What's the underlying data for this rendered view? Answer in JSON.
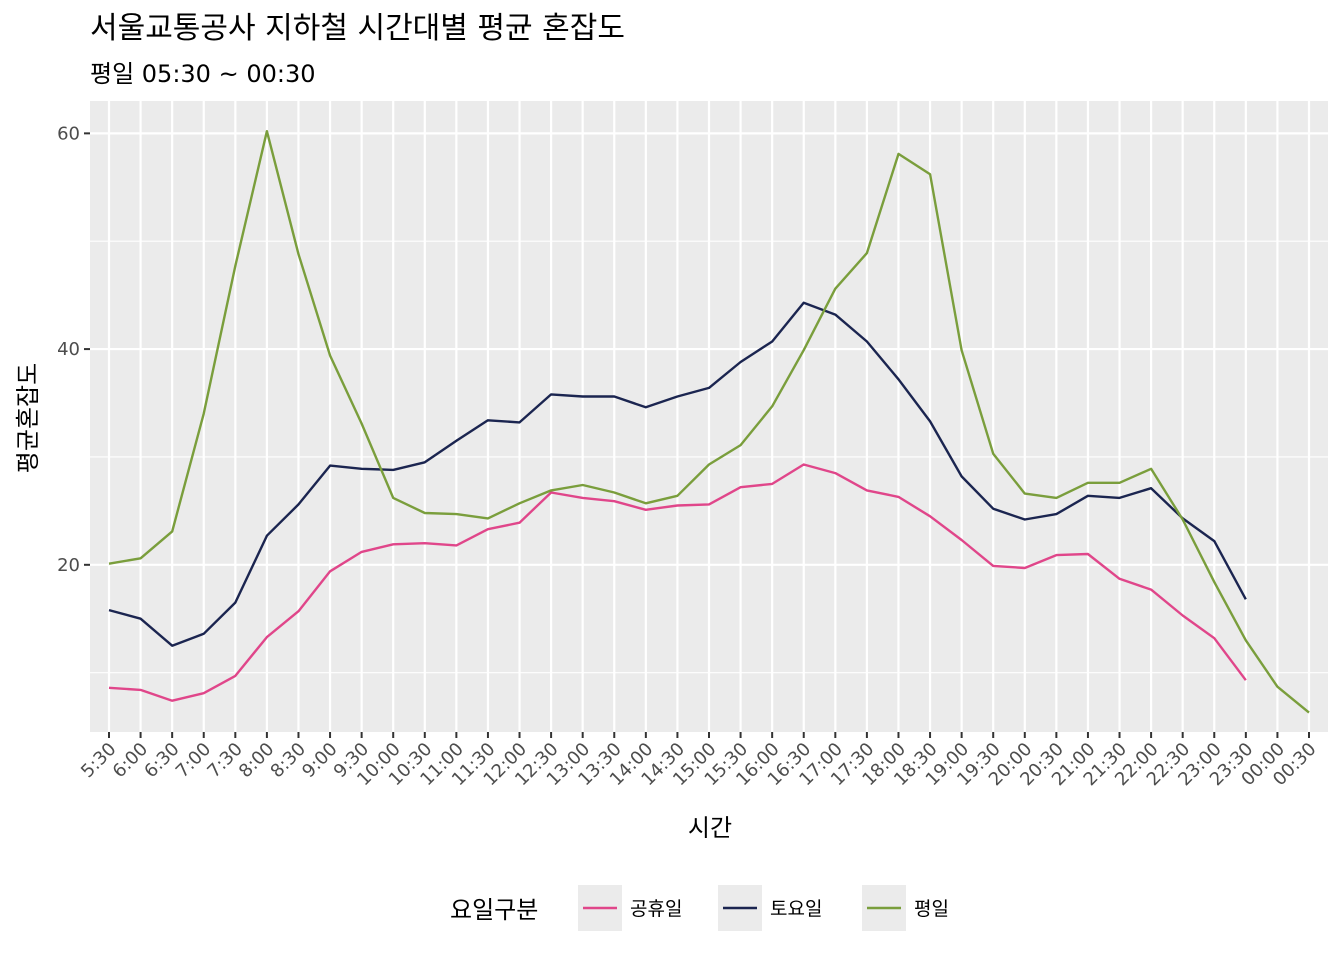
{
  "chart_data": {
    "type": "line",
    "title": "서울교통공사 지하철 시간대별 평균 혼잡도",
    "subtitle": "평일 05:30 ~ 00:30",
    "xlabel": "시간",
    "ylabel": "평균혼잡도",
    "ylim": [
      4.5,
      63
    ],
    "y_ticks": [
      20,
      40,
      60
    ],
    "grid": true,
    "legend_position": "bottom",
    "legend_title": "요일구분",
    "categories": [
      "5:30",
      "6:00",
      "6:30",
      "7:00",
      "7:30",
      "8:00",
      "8:30",
      "9:00",
      "9:30",
      "10:00",
      "10:30",
      "11:00",
      "11:30",
      "12:00",
      "12:30",
      "13:00",
      "13:30",
      "14:00",
      "14:30",
      "15:00",
      "15:30",
      "16:00",
      "16:30",
      "17:00",
      "17:30",
      "18:00",
      "18:30",
      "19:00",
      "19:30",
      "20:00",
      "20:30",
      "21:00",
      "21:30",
      "22:00",
      "22:30",
      "23:00",
      "23:30",
      "00:00",
      "00:30"
    ],
    "series": [
      {
        "name": "공휴일",
        "color": "#e0468a",
        "values": [
          8.6,
          8.4,
          7.4,
          8.1,
          9.7,
          13.3,
          15.7,
          19.4,
          21.2,
          21.9,
          22.0,
          21.8,
          23.3,
          23.9,
          26.7,
          26.2,
          25.9,
          25.1,
          25.5,
          25.6,
          27.2,
          27.5,
          29.3,
          28.5,
          26.9,
          26.3,
          24.5,
          22.3,
          19.9,
          19.7,
          20.9,
          21.0,
          18.7,
          17.7,
          15.3,
          13.2,
          9.3,
          null,
          null
        ]
      },
      {
        "name": "토요일",
        "color": "#1b2550",
        "values": [
          15.8,
          15.0,
          12.5,
          13.6,
          16.5,
          22.7,
          25.6,
          29.2,
          28.9,
          28.8,
          29.5,
          31.5,
          33.4,
          33.2,
          35.8,
          35.6,
          35.6,
          34.6,
          35.6,
          36.4,
          38.8,
          40.7,
          44.3,
          43.2,
          40.7,
          37.2,
          33.3,
          28.2,
          25.2,
          24.2,
          24.7,
          26.4,
          26.2,
          27.1,
          24.3,
          22.2,
          16.8,
          null,
          null
        ]
      },
      {
        "name": "평일",
        "color": "#7a9e3c",
        "values": [
          20.1,
          20.6,
          23.1,
          34.0,
          47.7,
          60.2,
          48.8,
          39.4,
          33.1,
          26.2,
          24.8,
          24.7,
          24.3,
          25.7,
          26.9,
          27.4,
          26.7,
          25.7,
          26.4,
          29.3,
          31.1,
          34.7,
          39.9,
          45.6,
          48.9,
          58.1,
          56.2,
          39.9,
          30.3,
          26.6,
          26.2,
          27.6,
          27.6,
          28.9,
          24.2,
          18.4,
          13.0,
          8.7,
          6.3
        ]
      }
    ]
  }
}
